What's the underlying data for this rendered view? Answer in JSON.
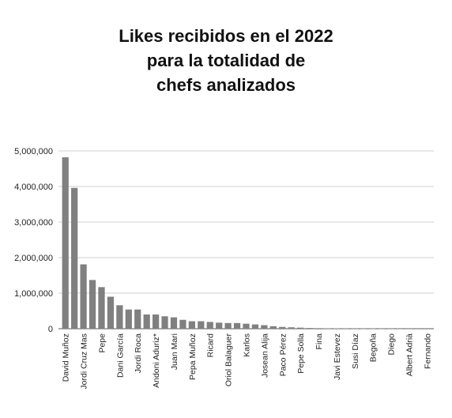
{
  "chart_data": {
    "type": "bar",
    "title_lines": [
      "Likes recibidos en el 2022",
      "para la totalidad de",
      "chefs analizados"
    ],
    "xlabel": "",
    "ylabel": "",
    "ylim": [
      0,
      5000000
    ],
    "yticks": [
      0,
      1000000,
      2000000,
      3000000,
      4000000,
      5000000
    ],
    "ytick_labels": [
      "0",
      "1,000,000",
      "2,000,000",
      "3,000,000",
      "4,000,000",
      "5,000,000"
    ],
    "grid": true,
    "legend": "none",
    "bar_color": "#808080",
    "categories": [
      "David Muñoz",
      "",
      "Jordi Cruz Mas",
      "",
      "Pepe",
      "",
      "Dani García",
      "",
      "Jordi Roca",
      "",
      "Andoni Aduriz*",
      "",
      "Juan Mari",
      "",
      "Pepa Muñoz",
      "",
      "Ricard",
      "",
      "Oriol Balaguer",
      "",
      "Karlos",
      "",
      "Josean Alija",
      "",
      "Paco Pérez",
      "",
      "Pepe Solla",
      "",
      "Fina",
      "",
      "Javi Estevez",
      "",
      "Susi Díaz",
      "",
      "Begoña",
      "",
      "Diego",
      "",
      "Albert Adrià",
      "",
      "Fernando"
    ],
    "values": [
      4820000,
      3960000,
      1810000,
      1370000,
      1170000,
      900000,
      660000,
      540000,
      540000,
      400000,
      400000,
      350000,
      320000,
      250000,
      210000,
      210000,
      190000,
      170000,
      160000,
      160000,
      140000,
      120000,
      100000,
      70000,
      50000,
      40000,
      30000,
      20000,
      15000,
      10000,
      10000,
      8000,
      6000,
      5000,
      4000,
      3000,
      2000,
      1000,
      1000,
      500,
      300
    ]
  }
}
